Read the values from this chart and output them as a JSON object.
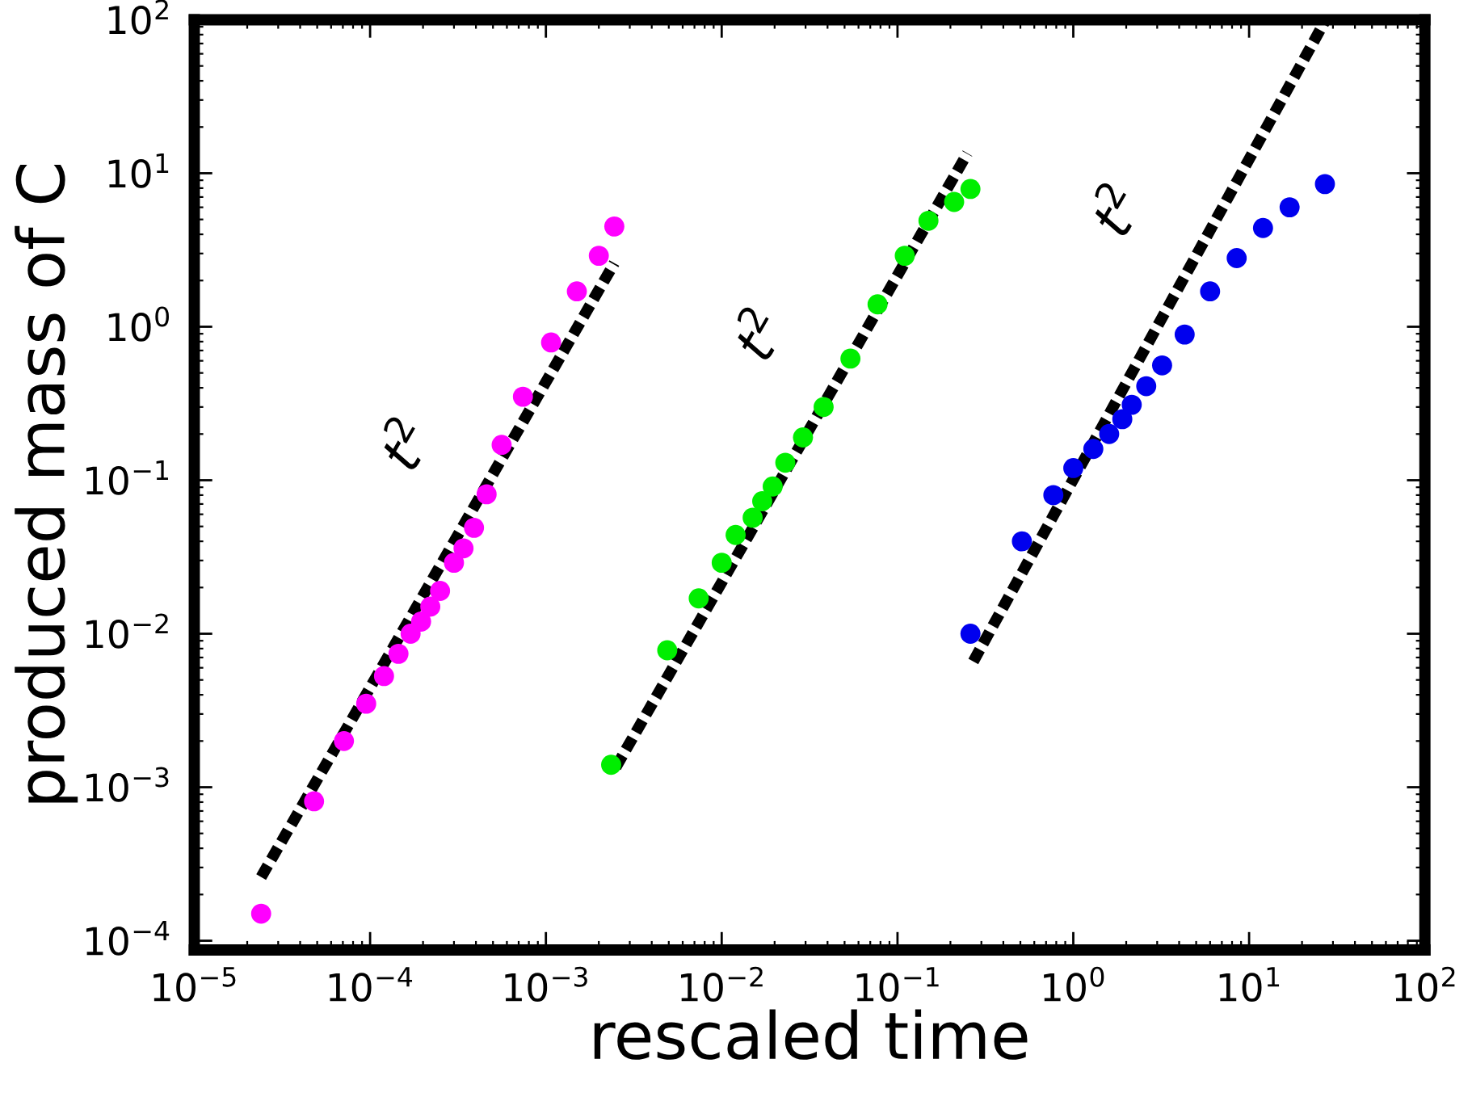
{
  "chart_data": {
    "type": "scatter",
    "xlabel": "rescaled time",
    "ylabel": "produced mass of C",
    "log": "xy",
    "grid": false,
    "xlim": [
      1e-05,
      100
    ],
    "ylim": [
      8.7e-05,
      100
    ],
    "xticks": [
      {
        "value": 1e-05,
        "label": "10$^{−5}$"
      },
      {
        "value": 0.0001,
        "label": "10$^{−4}$"
      },
      {
        "value": 0.001,
        "label": "10$^{−3}$"
      },
      {
        "value": 0.01,
        "label": "10$^{−2}$"
      },
      {
        "value": 0.1,
        "label": "10$^{−1}$"
      },
      {
        "value": 1,
        "label": "10$^{0}$"
      },
      {
        "value": 10,
        "label": "10$^{1}$"
      },
      {
        "value": 100,
        "label": "10$^{2}$"
      }
    ],
    "yticks": [
      {
        "value": 0.0001,
        "label": "10$^{−4}$"
      },
      {
        "value": 0.001,
        "label": "10$^{−3}$"
      },
      {
        "value": 0.01,
        "label": "10$^{−2}$"
      },
      {
        "value": 0.1,
        "label": "10$^{−1}$"
      },
      {
        "value": 1,
        "label": "10$^{0}$"
      },
      {
        "value": 10,
        "label": "10$^{1}$"
      },
      {
        "value": 100,
        "label": "10$^{2}$"
      }
    ],
    "series": [
      {
        "marker": "circle",
        "color": "#ff00ff",
        "x": [
          2.4e-05,
          4.8e-05,
          7.1e-05,
          9.5e-05,
          0.00012,
          0.000145,
          0.00017,
          0.000195,
          0.00022,
          0.00025,
          0.0003,
          0.00034,
          0.00039,
          0.00046,
          0.00056,
          0.00074,
          0.00107,
          0.0015,
          0.002,
          0.00245
        ],
        "values": [
          0.00015,
          0.00081,
          0.002,
          0.0035,
          0.0053,
          0.0074,
          0.01,
          0.012,
          0.015,
          0.019,
          0.029,
          0.036,
          0.049,
          0.081,
          0.17,
          0.35,
          0.79,
          1.7,
          2.9,
          4.5
        ]
      },
      {
        "marker": "circle",
        "color": "#00ee00",
        "x": [
          0.00235,
          0.0049,
          0.0074,
          0.01,
          0.012,
          0.015,
          0.017,
          0.0195,
          0.023,
          0.029,
          0.038,
          0.054,
          0.077,
          0.11,
          0.15,
          0.21,
          0.26
        ],
        "values": [
          0.0014,
          0.0078,
          0.017,
          0.029,
          0.044,
          0.057,
          0.073,
          0.091,
          0.13,
          0.19,
          0.3,
          0.62,
          1.4,
          2.9,
          4.9,
          6.5,
          7.9
        ]
      },
      {
        "marker": "circle",
        "color": "#0000ee",
        "x": [
          0.26,
          0.51,
          0.77,
          1.0,
          1.3,
          1.6,
          1.9,
          2.15,
          2.6,
          3.2,
          4.3,
          6.0,
          8.5,
          12,
          17,
          27
        ],
        "values": [
          0.01,
          0.04,
          0.08,
          0.12,
          0.16,
          0.2,
          0.25,
          0.31,
          0.41,
          0.56,
          0.89,
          1.7,
          2.8,
          4.4,
          6.0,
          8.5
        ]
      },
      {
        "type": "line",
        "line_style": "dashed",
        "marker": "none",
        "color": "#000000",
        "x": [
          2.4e-05,
          0.00245
        ],
        "values": [
          0.00026,
          2.6
        ]
      },
      {
        "type": "line",
        "line_style": "dashed",
        "marker": "none",
        "color": "#000000",
        "x": [
          0.0025,
          0.25
        ],
        "values": [
          0.00135,
          13.5
        ]
      },
      {
        "type": "line",
        "line_style": "dashed",
        "marker": "none",
        "color": "#000000",
        "x": [
          0.27,
          27
        ],
        "values": [
          0.0066,
          98
        ]
      }
    ],
    "annotations": [
      "t$^{2}$",
      "t$^{2}$",
      "t$^{2}$"
    ]
  }
}
